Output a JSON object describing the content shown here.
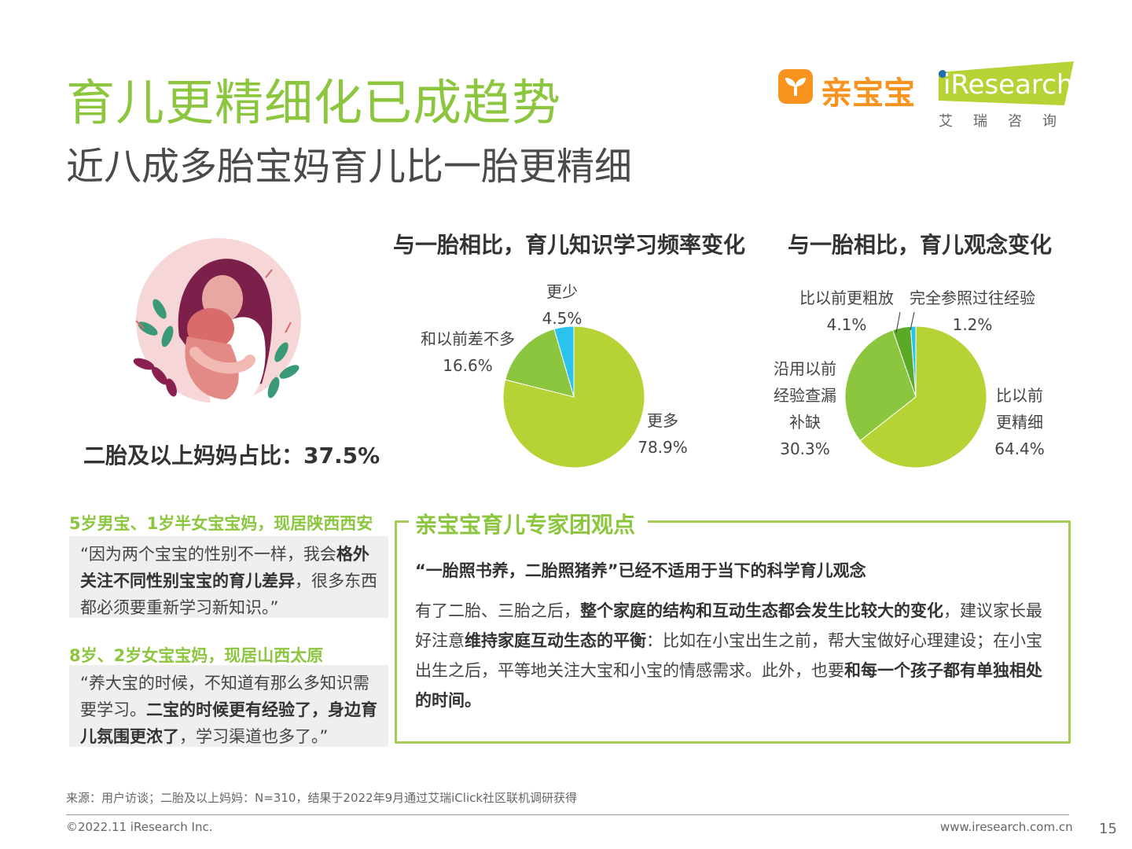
{
  "header": {
    "title": "育儿更精细化已成趋势",
    "subtitle": "近八成多胎宝妈育儿比一胎更精细"
  },
  "logos": {
    "qinbaobao": "亲宝宝",
    "iresearch": "iResearch",
    "iresearch_cn": "艾瑞咨询"
  },
  "left_panel": {
    "ratio_text": "二胎及以上妈妈占比：37.5%"
  },
  "chart_data": [
    {
      "type": "pie",
      "title": "与一胎相比，育儿知识学习频率变化",
      "slices": [
        {
          "label": "更多",
          "value": 78.9,
          "value_label": "78.9%",
          "color": "#b5d334"
        },
        {
          "label": "和以前差不多",
          "value": 16.6,
          "value_label": "16.6%",
          "color": "#8cc63f"
        },
        {
          "label": "更少",
          "value": 4.5,
          "value_label": "4.5%",
          "color": "#29c3ec"
        }
      ]
    },
    {
      "type": "pie",
      "title": "与一胎相比，育儿观念变化",
      "slices": [
        {
          "label": "比以前更精细",
          "label_lines": [
            "比以前",
            "更精细"
          ],
          "value": 64.4,
          "value_label": "64.4%",
          "color": "#b5d334"
        },
        {
          "label": "沿用以前经验查漏补缺",
          "label_lines": [
            "沿用以前",
            "经验查漏",
            "补缺"
          ],
          "value": 30.3,
          "value_label": "30.3%",
          "color": "#8cc63f"
        },
        {
          "label": "比以前更粗放",
          "value": 4.1,
          "value_label": "4.1%",
          "color": "#5aaa28"
        },
        {
          "label": "完全参照过往经验",
          "value": 1.2,
          "value_label": "1.2%",
          "color": "#29c3ec"
        }
      ]
    }
  ],
  "quotes": [
    {
      "person": "5岁男宝、1岁半女宝宝妈，现居陕西西安",
      "parts": [
        "“因为两个宝宝的性别不一样，我会",
        "格外关注不同性别宝宝的育儿差异",
        "，很多东西都必须要重新学习新知识。”"
      ]
    },
    {
      "person": "8岁、2岁女宝宝妈，现居山西太原",
      "parts": [
        "“养大宝的时候，不知道有那么多知识需要学习。",
        "二宝的时候更有经验了，身边育儿氛围更浓了",
        "，学习渠道也多了。”"
      ]
    }
  ],
  "expert": {
    "title": "亲宝宝育儿专家团观点",
    "headline": "“一胎照书养，二胎照猪养”已经不适用于当下的科学育儿观念",
    "parts": [
      "有了二胎、三胎之后，",
      "整个家庭的结构和互动生态都会发生比较大的变化",
      "，建议家长最好注意",
      "维持家庭互动生态的平衡",
      "：比如在小宝出生之前，帮大宝做好心理建设；在小宝出生之后，平等地关注大宝和小宝的情感需求。此外，也要",
      "和每一个孩子都有单独相处的时间。"
    ]
  },
  "footer": {
    "source": "来源：用户访谈；二胎及以上妈妈：N=310，结果于2022年9月通过艾瑞iClick社区联机调研获得",
    "copyright": "©2022.11 iResearch Inc.",
    "website": "www.iresearch.com.cn",
    "page": "15"
  }
}
